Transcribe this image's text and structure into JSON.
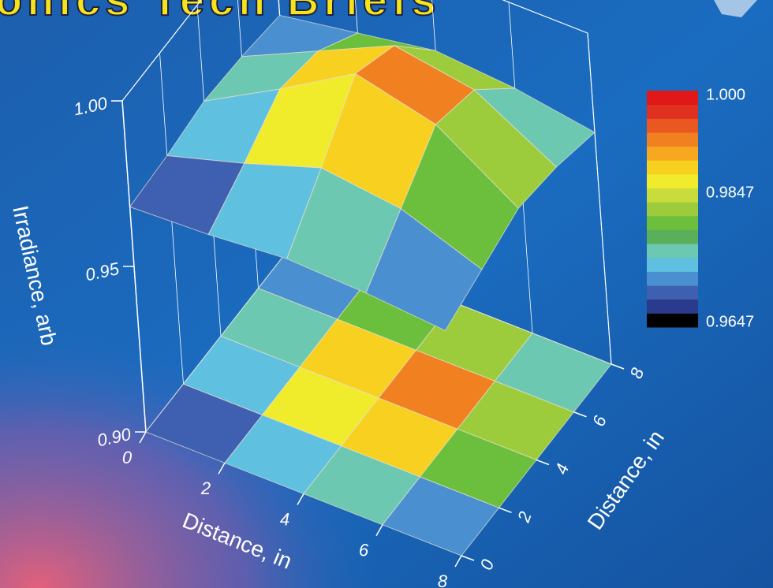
{
  "chart_data": {
    "type": "surface3d",
    "title": "onics Tech Briefs",
    "zlabel": "Irradiance, arb",
    "xlabel": "Distance, in",
    "ylabel": "Distance, in",
    "x": [
      0,
      2,
      4,
      6,
      8
    ],
    "y": [
      0,
      2,
      4,
      6,
      8
    ],
    "z": [
      [
        0.968,
        0.969,
        0.971,
        0.97,
        0.968
      ],
      [
        0.969,
        0.976,
        0.984,
        0.981,
        0.972
      ],
      [
        0.971,
        0.984,
        0.998,
        0.992,
        0.976
      ],
      [
        0.97,
        0.981,
        0.992,
        0.988,
        0.974
      ],
      [
        0.968,
        0.972,
        0.976,
        0.974,
        0.97
      ]
    ],
    "xlim": [
      0,
      8
    ],
    "ylim": [
      0,
      8
    ],
    "zlim": [
      0.9,
      1.0
    ],
    "xticks": [
      0,
      2,
      4,
      6,
      8
    ],
    "yticks": [
      0,
      2,
      4,
      6,
      8
    ],
    "zticks": [
      {
        "value": 0.9,
        "label": "0.90"
      },
      {
        "value": 0.95,
        "label": "0.95"
      },
      {
        "value": 1.0,
        "label": "1.00"
      }
    ],
    "colorbar_ticks": [
      {
        "value": 1.0,
        "label": "1.000"
      },
      0.9847,
      0.9647
    ],
    "colorscale": [
      "#000000",
      "#2a3a8c",
      "#3f5fb0",
      "#4a90d0",
      "#5fc0e0",
      "#6cc8b0",
      "#5ab05a",
      "#6cbf3c",
      "#9ccc3c",
      "#c8dc3c",
      "#f0ec2c",
      "#f8d020",
      "#f8a820",
      "#f08020",
      "#e85820",
      "#e03020",
      "#e01818"
    ]
  }
}
